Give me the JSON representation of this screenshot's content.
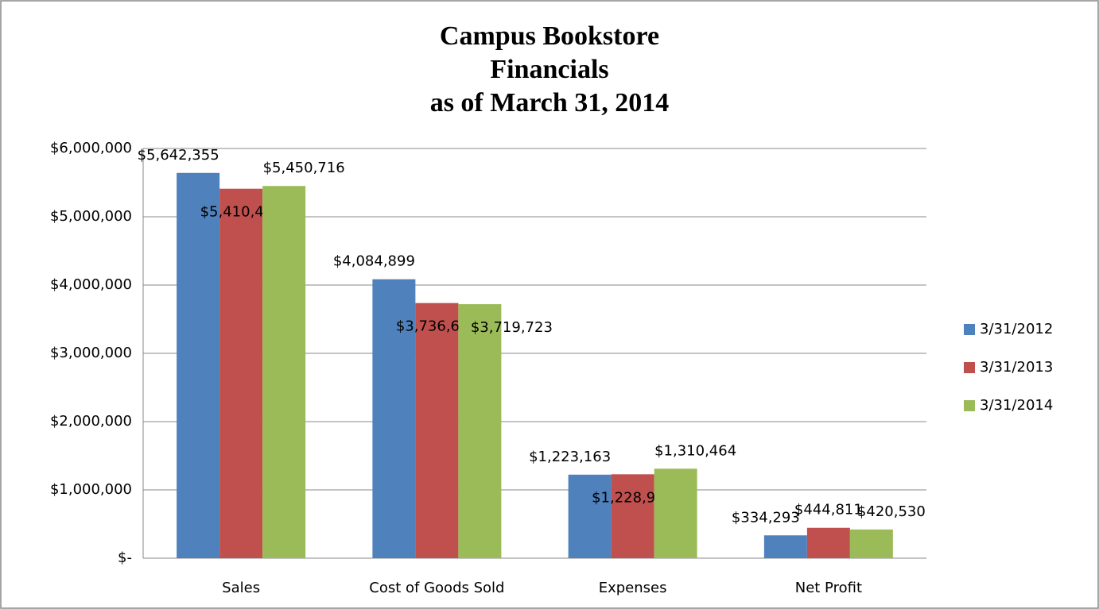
{
  "chart_data": {
    "type": "bar",
    "title": [
      "Campus Bookstore",
      "Financials",
      "as of March 31, 2014"
    ],
    "categories": [
      "Sales",
      "Cost of Goods Sold",
      "Expenses",
      "Net Profit"
    ],
    "series": [
      {
        "name": "3/31/2012",
        "color": "#4f81bd",
        "values": [
          5642355,
          4084899,
          1223163,
          334293
        ],
        "value_labels": [
          "$5,642,355",
          "$4,084,899",
          "$1,223,163",
          "$334,293"
        ]
      },
      {
        "name": "3/31/2013",
        "color": "#c0504d",
        "values": [
          5410403,
          3736684,
          1228908,
          444811
        ],
        "value_labels": [
          "$5,410,403",
          "$3,736,684",
          "$1,228,908",
          "$444,811"
        ]
      },
      {
        "name": "3/31/2014",
        "color": "#9bbb59",
        "values": [
          5450716,
          3719723,
          1310464,
          420530
        ],
        "value_labels": [
          "$5,450,716",
          "$3,719,723",
          "$1,310,464",
          "$420,530"
        ]
      }
    ],
    "ylim": [
      0,
      6000000
    ],
    "yticks": [
      {
        "value": 0,
        "label": "$-"
      },
      {
        "value": 1000000,
        "label": "$1,000,000"
      },
      {
        "value": 2000000,
        "label": "$2,000,000"
      },
      {
        "value": 3000000,
        "label": "$3,000,000"
      },
      {
        "value": 4000000,
        "label": "$4,000,000"
      },
      {
        "value": 5000000,
        "label": "$5,000,000"
      },
      {
        "value": 6000000,
        "label": "$6,000,000"
      }
    ],
    "grid": true,
    "legend": "right"
  }
}
